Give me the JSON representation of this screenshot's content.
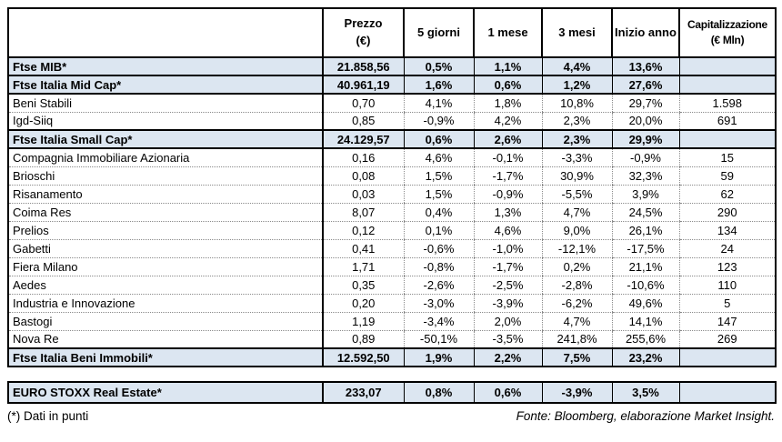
{
  "table": {
    "headers": {
      "name": "",
      "prezzo": {
        "line1": "Prezzo",
        "line2": "(€)"
      },
      "giorni5": "5 giorni",
      "mese1": "1 mese",
      "mesi3": "3 mesi",
      "inizio_anno": "Inizio anno",
      "capitalizzazione": {
        "line1": "Capitalizzazione",
        "line2": "(€ Mln)"
      }
    },
    "rows": [
      {
        "name": "Ftse MIB*",
        "type": "index",
        "values": [
          "21.858,56",
          "0,5%",
          "1,1%",
          "4,4%",
          "13,6%",
          ""
        ]
      },
      {
        "name": "Ftse Italia Mid Cap*",
        "type": "index",
        "values": [
          "40.961,19",
          "1,6%",
          "0,6%",
          "1,2%",
          "27,6%",
          ""
        ]
      },
      {
        "name": "Beni Stabili",
        "type": "stock",
        "values": [
          "0,70",
          "4,1%",
          "1,8%",
          "10,8%",
          "29,7%",
          "1.598"
        ]
      },
      {
        "name": "Igd-Siiq",
        "type": "stock",
        "values": [
          "0,85",
          "-0,9%",
          "4,2%",
          "2,3%",
          "20,0%",
          "691"
        ]
      },
      {
        "name": "Ftse Italia Small Cap*",
        "type": "index",
        "values": [
          "24.129,57",
          "0,6%",
          "2,6%",
          "2,3%",
          "29,9%",
          ""
        ]
      },
      {
        "name": "Compagnia Immobiliare Azionaria",
        "type": "stock",
        "values": [
          "0,16",
          "4,6%",
          "-0,1%",
          "-3,3%",
          "-0,9%",
          "15"
        ]
      },
      {
        "name": "Brioschi",
        "type": "stock",
        "values": [
          "0,08",
          "1,5%",
          "-1,7%",
          "30,9%",
          "32,3%",
          "59"
        ]
      },
      {
        "name": "Risanamento",
        "type": "stock",
        "values": [
          "0,03",
          "1,5%",
          "-0,9%",
          "-5,5%",
          "3,9%",
          "62"
        ]
      },
      {
        "name": "Coima Res",
        "type": "stock",
        "values": [
          "8,07",
          "0,4%",
          "1,3%",
          "4,7%",
          "24,5%",
          "290"
        ]
      },
      {
        "name": "Prelios",
        "type": "stock",
        "values": [
          "0,12",
          "0,1%",
          "4,6%",
          "9,0%",
          "26,1%",
          "134"
        ]
      },
      {
        "name": "Gabetti",
        "type": "stock",
        "values": [
          "0,41",
          "-0,6%",
          "-1,0%",
          "-12,1%",
          "-17,5%",
          "24"
        ]
      },
      {
        "name": "Fiera Milano",
        "type": "stock",
        "values": [
          "1,71",
          "-0,8%",
          "-1,7%",
          "0,2%",
          "21,1%",
          "123"
        ]
      },
      {
        "name": "Aedes",
        "type": "stock",
        "values": [
          "0,35",
          "-2,6%",
          "-2,5%",
          "-2,8%",
          "-10,6%",
          "110"
        ]
      },
      {
        "name": "Industria e Innovazione",
        "type": "stock",
        "values": [
          "0,20",
          "-3,0%",
          "-3,9%",
          "-6,2%",
          "49,6%",
          "5"
        ]
      },
      {
        "name": "Bastogi",
        "type": "stock",
        "values": [
          "1,19",
          "-3,4%",
          "2,0%",
          "4,7%",
          "14,1%",
          "147"
        ]
      },
      {
        "name": "Nova Re",
        "type": "stock",
        "values": [
          "0,89",
          "-50,1%",
          "-3,5%",
          "241,8%",
          "255,6%",
          "269"
        ]
      },
      {
        "name": "Ftse Italia Beni Immobili*",
        "type": "index",
        "values": [
          "12.592,50",
          "1,9%",
          "2,2%",
          "7,5%",
          "23,2%",
          ""
        ]
      }
    ]
  },
  "euro_table": {
    "rows": [
      {
        "name": "EURO STOXX Real Estate*",
        "type": "index",
        "values": [
          "233,07",
          "0,8%",
          "0,6%",
          "-3,9%",
          "3,5%",
          ""
        ]
      }
    ]
  },
  "footer": {
    "left": "(*) Dati in punti",
    "right": "Fonte: Bloomberg, elaborazione Market Insight."
  },
  "colors": {
    "index_row_bg": "#dce6f1",
    "border": "#000000",
    "dotted_grid": "#8a8a8a"
  }
}
